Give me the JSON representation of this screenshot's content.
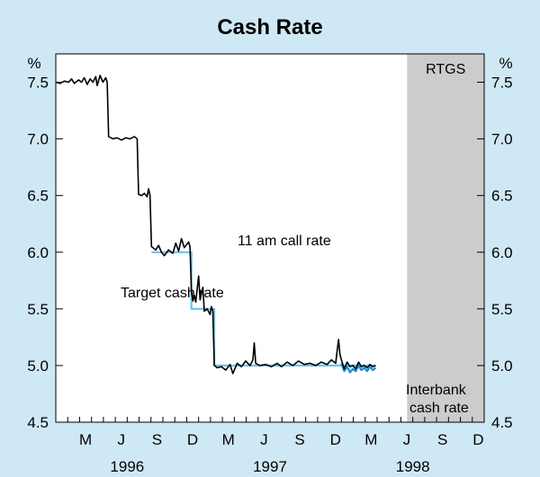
{
  "chart_data": {
    "type": "line",
    "title": "Cash Rate",
    "ylabel_left": "%",
    "ylabel_right": "%",
    "ylim": [
      4.5,
      7.75
    ],
    "yticks": [
      "4.5",
      "5.0",
      "5.5",
      "6.0",
      "6.5",
      "7.0",
      "7.5"
    ],
    "xlim": [
      1996.0,
      1999.0
    ],
    "month_ticks": [
      "M",
      "J",
      "S",
      "D",
      "M",
      "J",
      "S",
      "D",
      "M",
      "J",
      "S",
      "D"
    ],
    "year_labels": [
      "1996",
      "1997",
      "1998"
    ],
    "shaded_region": {
      "label": "RTGS",
      "start": 1998.46,
      "end": 1999.0
    },
    "annotations": {
      "call_rate": "11 am call rate",
      "target": "Target cash rate",
      "interbank_line1": "Interbank",
      "interbank_line2": "cash rate"
    },
    "series": [
      {
        "name": "11 am call rate",
        "color": "#000000",
        "points": [
          [
            1996.0,
            7.5
          ],
          [
            1996.03,
            7.49
          ],
          [
            1996.06,
            7.51
          ],
          [
            1996.09,
            7.5
          ],
          [
            1996.11,
            7.53
          ],
          [
            1996.13,
            7.49
          ],
          [
            1996.16,
            7.52
          ],
          [
            1996.18,
            7.5
          ],
          [
            1996.2,
            7.54
          ],
          [
            1996.22,
            7.48
          ],
          [
            1996.24,
            7.53
          ],
          [
            1996.26,
            7.5
          ],
          [
            1996.28,
            7.55
          ],
          [
            1996.29,
            7.47
          ],
          [
            1996.31,
            7.56
          ],
          [
            1996.33,
            7.5
          ],
          [
            1996.35,
            7.54
          ],
          [
            1996.36,
            7.5
          ],
          [
            1996.37,
            7.02
          ],
          [
            1996.4,
            7.0
          ],
          [
            1996.43,
            7.01
          ],
          [
            1996.46,
            6.99
          ],
          [
            1996.49,
            7.01
          ],
          [
            1996.52,
            7.0
          ],
          [
            1996.55,
            7.02
          ],
          [
            1996.57,
            7.0
          ],
          [
            1996.58,
            6.51
          ],
          [
            1996.6,
            6.5
          ],
          [
            1996.62,
            6.52
          ],
          [
            1996.64,
            6.49
          ],
          [
            1996.65,
            6.56
          ],
          [
            1996.66,
            6.5
          ],
          [
            1996.67,
            6.05
          ],
          [
            1996.7,
            6.02
          ],
          [
            1996.72,
            6.06
          ],
          [
            1996.74,
            6.0
          ],
          [
            1996.76,
            5.97
          ],
          [
            1996.79,
            6.02
          ],
          [
            1996.82,
            5.99
          ],
          [
            1996.84,
            6.08
          ],
          [
            1996.86,
            6.01
          ],
          [
            1996.88,
            6.12
          ],
          [
            1996.9,
            6.04
          ],
          [
            1996.93,
            6.09
          ],
          [
            1996.94,
            6.05
          ],
          [
            1996.95,
            5.65
          ],
          [
            1996.96,
            5.57
          ],
          [
            1996.97,
            5.62
          ],
          [
            1996.98,
            5.56
          ],
          [
            1997.0,
            5.79
          ],
          [
            1997.01,
            5.58
          ],
          [
            1997.03,
            5.69
          ],
          [
            1997.04,
            5.48
          ],
          [
            1997.06,
            5.5
          ],
          [
            1997.08,
            5.45
          ],
          [
            1997.09,
            5.52
          ],
          [
            1997.1,
            5.48
          ],
          [
            1997.11,
            5.0
          ],
          [
            1997.13,
            4.98
          ],
          [
            1997.16,
            4.99
          ],
          [
            1997.19,
            4.96
          ],
          [
            1997.22,
            5.01
          ],
          [
            1997.24,
            4.93
          ],
          [
            1997.27,
            5.02
          ],
          [
            1997.3,
            4.99
          ],
          [
            1997.33,
            5.04
          ],
          [
            1997.36,
            5.0
          ],
          [
            1997.38,
            5.05
          ],
          [
            1997.39,
            5.2
          ],
          [
            1997.4,
            5.02
          ],
          [
            1997.43,
            5.0
          ],
          [
            1997.47,
            5.01
          ],
          [
            1997.51,
            4.99
          ],
          [
            1997.55,
            5.02
          ],
          [
            1997.58,
            4.99
          ],
          [
            1997.62,
            5.03
          ],
          [
            1997.66,
            5.0
          ],
          [
            1997.7,
            5.04
          ],
          [
            1997.74,
            5.01
          ],
          [
            1997.78,
            5.02
          ],
          [
            1997.82,
            5.0
          ],
          [
            1997.86,
            5.03
          ],
          [
            1997.9,
            5.01
          ],
          [
            1997.93,
            5.05
          ],
          [
            1997.96,
            5.02
          ],
          [
            1997.97,
            5.13
          ],
          [
            1997.98,
            5.23
          ],
          [
            1997.99,
            5.1
          ],
          [
            1998.0,
            5.05
          ],
          [
            1998.02,
            4.97
          ],
          [
            1998.04,
            5.03
          ],
          [
            1998.06,
            4.99
          ],
          [
            1998.08,
            5.0
          ],
          [
            1998.1,
            4.97
          ],
          [
            1998.12,
            5.03
          ],
          [
            1998.14,
            4.99
          ],
          [
            1998.16,
            5.0
          ],
          [
            1998.18,
            4.98
          ],
          [
            1998.2,
            5.01
          ],
          [
            1998.22,
            4.99
          ],
          [
            1998.24,
            5.0
          ]
        ]
      },
      {
        "name": "Target cash rate",
        "color": "#6cc4ea",
        "points": [
          [
            1996.67,
            6.0
          ],
          [
            1996.95,
            6.0
          ],
          [
            1996.95,
            5.5
          ],
          [
            1997.11,
            5.5
          ],
          [
            1997.11,
            5.0
          ],
          [
            1998.24,
            5.0
          ]
        ]
      },
      {
        "name": "Interbank cash rate",
        "color": "#1a8fd6",
        "points": [
          [
            1998.0,
            5.02
          ],
          [
            1998.02,
            4.95
          ],
          [
            1998.04,
            4.99
          ],
          [
            1998.06,
            4.94
          ],
          [
            1998.08,
            4.97
          ],
          [
            1998.1,
            4.95
          ],
          [
            1998.12,
            5.0
          ],
          [
            1998.14,
            4.96
          ],
          [
            1998.16,
            4.98
          ],
          [
            1998.18,
            4.95
          ],
          [
            1998.2,
            4.99
          ],
          [
            1998.22,
            4.96
          ],
          [
            1998.24,
            4.98
          ]
        ]
      }
    ]
  }
}
